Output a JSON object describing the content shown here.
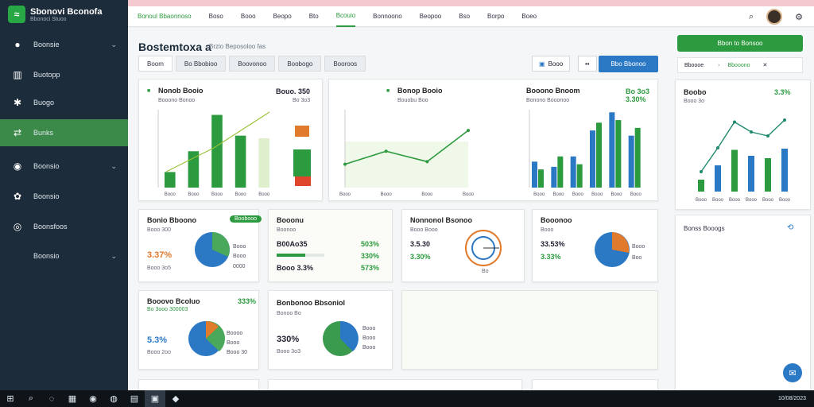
{
  "app": {
    "title": "Sbonovi Bconofa",
    "subtitle": "Bbonoci Stuoo"
  },
  "sidebar": {
    "items": [
      {
        "label": "Boonsie",
        "icon": "pin-icon"
      },
      {
        "label": "Buotopp",
        "icon": "chart-icon"
      },
      {
        "label": "Buogo",
        "icon": "puzzle-icon"
      },
      {
        "label": "Bunks",
        "icon": "shuffle-icon"
      },
      {
        "label": "Boonsio",
        "icon": "target-icon"
      },
      {
        "label": "Boonsio",
        "icon": "gear-icon"
      },
      {
        "label": "Boonsfoos",
        "icon": "globe-icon"
      },
      {
        "label": "Boonsio",
        "icon": ""
      }
    ]
  },
  "header": {
    "tabs": [
      "Bonoul Bbaonnoso",
      "Boso",
      "Booo",
      "Beopo",
      "Bto",
      "Bcouio",
      "Bonnoono",
      "Beopoo",
      "Bso",
      "Borpo",
      "Boeo"
    ]
  },
  "main": {
    "title": "Bostemtoxa a",
    "subtitle": "Brzio Beposoloo fas",
    "tabs": [
      "Boom",
      "Bo Bbobioo",
      "Boovonoo",
      "Boobogo",
      "Booroos"
    ],
    "filter_label": "Booo",
    "more_label": "••",
    "primary_button": "Bbo Bbonoo"
  },
  "cards": {
    "bar1": {
      "title": "Nonob Booio",
      "sub": "Booono Bonoo",
      "v1": "Bouo. 350",
      "v2": "Bo 3o3"
    },
    "line1": {
      "title": "Bonop Booio",
      "sub": "Bouobu Boo"
    },
    "bar2": {
      "title": "Booono Bnoom",
      "v": "Bo 3o3 3.30%",
      "sub": "Bonono Booonoo"
    },
    "pie1": {
      "title": "Bonio Bboono",
      "badge": "Boobooo",
      "sub": "Booo 300",
      "pct": "3.37%",
      "foot": "Booo 3o5",
      "lg1": "Booo",
      "lg2": "Booo",
      "lg3": "0000"
    },
    "bar3": {
      "title": "Booonu",
      "sub": "Boonoo",
      "v1": "B00Ao35",
      "v2": "Booo 3.3%",
      "p1": "503%",
      "p2": "330%",
      "p3": "573%"
    },
    "gauge": {
      "title": "Nonnonol Bsonoo",
      "sub": "Booo Booo",
      "v1": "3.5.30",
      "v2": "3.30%",
      "foot": "Bo"
    },
    "pie2": {
      "title": "Booonoo",
      "sub": "Booo",
      "v1": "33.53%",
      "v2": "3.33%",
      "lg1": "Booo",
      "lg2": "Boo"
    },
    "pie3": {
      "title": "Booovo Bcoluo",
      "v": "333%",
      "sub": "Bo 3ooo 300003",
      "pct": "5.3%",
      "foot": "Booo 2oo",
      "lg1": "Boooo",
      "lg2": "Booo",
      "lg3": "Booo 30"
    },
    "pie4": {
      "title": "Bonbonoo Bbsoniol",
      "sub": "Bonoo Bo",
      "v": "330%",
      "foot": "Booo 3o3",
      "lg1": "Booo",
      "lg2": "Booo",
      "lg3": "Booo"
    }
  },
  "right": {
    "button": "Bbon to Bonsoo",
    "row1": "Bboooe",
    "row1b": "Bbooono",
    "card_title": "Boobo",
    "card_pct": "3.3%",
    "card_sub": "Booo 3o",
    "list_title": "Bonss Booogs"
  },
  "chart_data": [
    {
      "type": "bar",
      "categories": [
        "Booo",
        "Booo",
        "Booo",
        "Booo",
        "Booo"
      ],
      "values": [
        12,
        28,
        56,
        40,
        38
      ],
      "ylim": [
        0,
        60
      ]
    },
    {
      "type": "line",
      "categories": [
        "Booo",
        "Booo",
        "Booo",
        "Booo"
      ],
      "values": [
        18,
        28,
        20,
        44
      ],
      "ylim": [
        0,
        60
      ]
    },
    {
      "type": "bar",
      "categories": [
        "Booo",
        "Booo",
        "Booo",
        "Booo",
        "Booo",
        "Booo"
      ],
      "series": [
        {
          "values": [
            20,
            16,
            24,
            44,
            58,
            40
          ]
        },
        {
          "values": [
            14,
            24,
            18,
            50,
            52,
            46
          ]
        }
      ],
      "ylim": [
        0,
        60
      ]
    },
    {
      "type": "line",
      "categories": [
        "Booo",
        "Booo",
        "Booo",
        "Booo",
        "Booo",
        "Booo"
      ],
      "values": [
        10,
        22,
        35,
        30,
        28,
        36
      ],
      "ylim": [
        0,
        40
      ]
    }
  ],
  "taskbar": {
    "date": "10/08/2023"
  },
  "colors": {
    "green": "#2c9a3e",
    "blue": "#2b78c5",
    "orange": "#e07a2c",
    "sidebar": "#1d2c3b"
  }
}
